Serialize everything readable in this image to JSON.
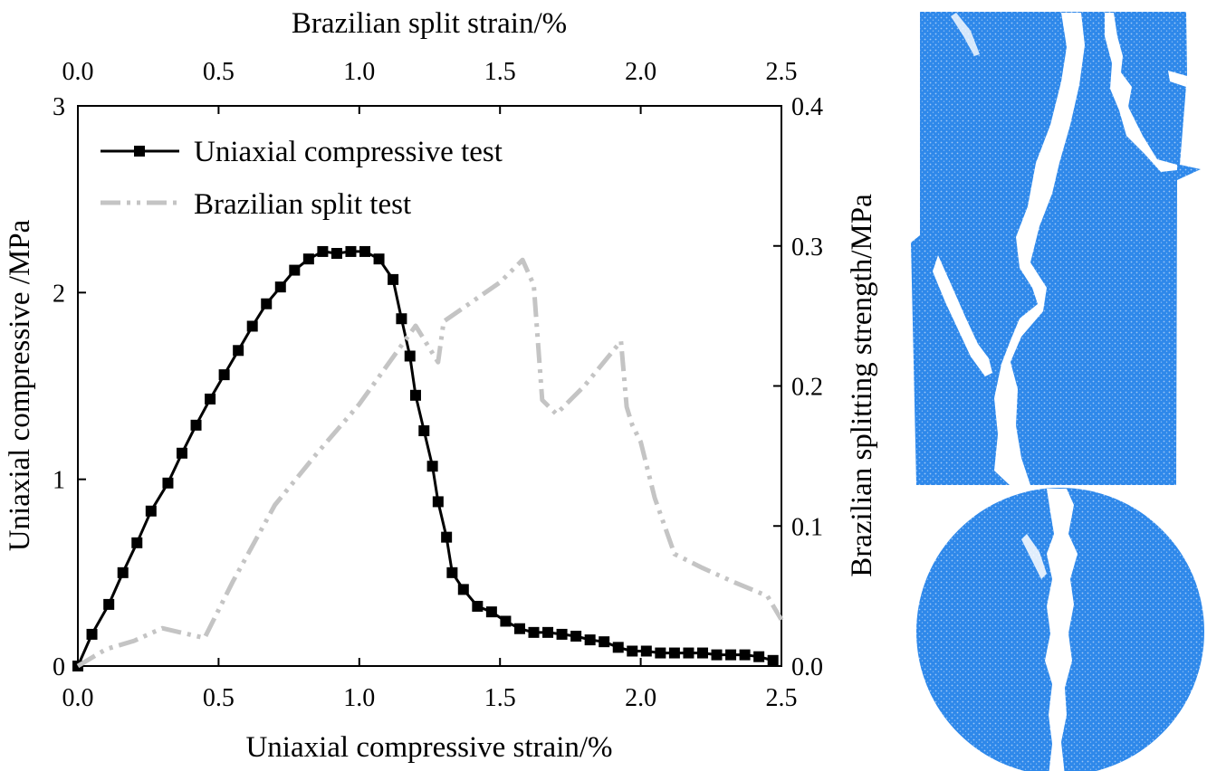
{
  "chart_data": {
    "type": "line",
    "x_bottom": {
      "label": "Uniaxial compressive strain/%",
      "range": [
        0.0,
        2.5
      ],
      "ticks": [
        "0.0",
        "0.5",
        "1.0",
        "1.5",
        "2.0",
        "2.5"
      ]
    },
    "x_top": {
      "label": "Brazilian split strain/%",
      "range": [
        0.0,
        2.5
      ],
      "ticks": [
        "0.0",
        "0.5",
        "1.0",
        "1.5",
        "2.0",
        "2.5"
      ]
    },
    "y_left": {
      "label": "Uniaxial compressive /MPa",
      "range": [
        0,
        3
      ],
      "ticks": [
        "0",
        "1",
        "2",
        "3"
      ]
    },
    "y_right": {
      "label": "Brazilian splitting strength/MPa",
      "range": [
        0.0,
        0.4
      ],
      "ticks": [
        "0.0",
        "0.1",
        "0.2",
        "0.3",
        "0.4"
      ]
    },
    "grid": false,
    "legend_position": "top-left",
    "series": [
      {
        "name": "Uniaxial compressive test",
        "axis": "bottom-left",
        "color": "#000000",
        "marker": "square",
        "x": [
          0.0,
          0.05,
          0.11,
          0.16,
          0.21,
          0.26,
          0.32,
          0.37,
          0.42,
          0.47,
          0.52,
          0.57,
          0.62,
          0.67,
          0.72,
          0.77,
          0.82,
          0.87,
          0.92,
          0.97,
          1.02,
          1.07,
          1.12,
          1.15,
          1.18,
          1.2,
          1.23,
          1.26,
          1.28,
          1.31,
          1.33,
          1.37,
          1.42,
          1.47,
          1.52,
          1.57,
          1.62,
          1.67,
          1.72,
          1.77,
          1.82,
          1.87,
          1.92,
          1.97,
          2.02,
          2.07,
          2.12,
          2.17,
          2.22,
          2.27,
          2.32,
          2.37,
          2.42,
          2.47
        ],
        "y": [
          0.0,
          0.17,
          0.33,
          0.5,
          0.66,
          0.83,
          0.98,
          1.14,
          1.29,
          1.43,
          1.56,
          1.69,
          1.82,
          1.94,
          2.03,
          2.12,
          2.18,
          2.22,
          2.21,
          2.22,
          2.22,
          2.18,
          2.07,
          1.86,
          1.66,
          1.45,
          1.26,
          1.07,
          0.88,
          0.69,
          0.5,
          0.41,
          0.32,
          0.29,
          0.24,
          0.2,
          0.18,
          0.18,
          0.17,
          0.16,
          0.14,
          0.13,
          0.1,
          0.08,
          0.08,
          0.07,
          0.07,
          0.07,
          0.07,
          0.06,
          0.06,
          0.06,
          0.05,
          0.03
        ]
      },
      {
        "name": "Brazilian split test",
        "axis": "top-right",
        "color": "#c4c4c4",
        "marker": "none",
        "x": [
          0.0,
          0.1,
          0.2,
          0.3,
          0.45,
          0.55,
          0.7,
          0.85,
          1.0,
          1.1,
          1.2,
          1.28,
          1.3,
          1.5,
          1.58,
          1.62,
          1.65,
          1.7,
          1.8,
          1.93,
          1.95,
          1.97,
          2.0,
          2.05,
          2.12,
          2.22,
          2.33,
          2.45,
          2.5
        ],
        "y": [
          0.0,
          0.012,
          0.018,
          0.027,
          0.02,
          0.06,
          0.115,
          0.152,
          0.187,
          0.215,
          0.243,
          0.217,
          0.246,
          0.274,
          0.29,
          0.272,
          0.19,
          0.18,
          0.2,
          0.232,
          0.185,
          0.172,
          0.16,
          0.12,
          0.08,
          0.07,
          0.06,
          0.05,
          0.033
        ]
      }
    ]
  },
  "images": [
    {
      "name": "cylindrical-specimen-fracture",
      "shape": "rectangle",
      "color": "#2b84e8"
    },
    {
      "name": "disc-specimen-fracture",
      "shape": "circle",
      "color": "#2b84e8"
    }
  ]
}
